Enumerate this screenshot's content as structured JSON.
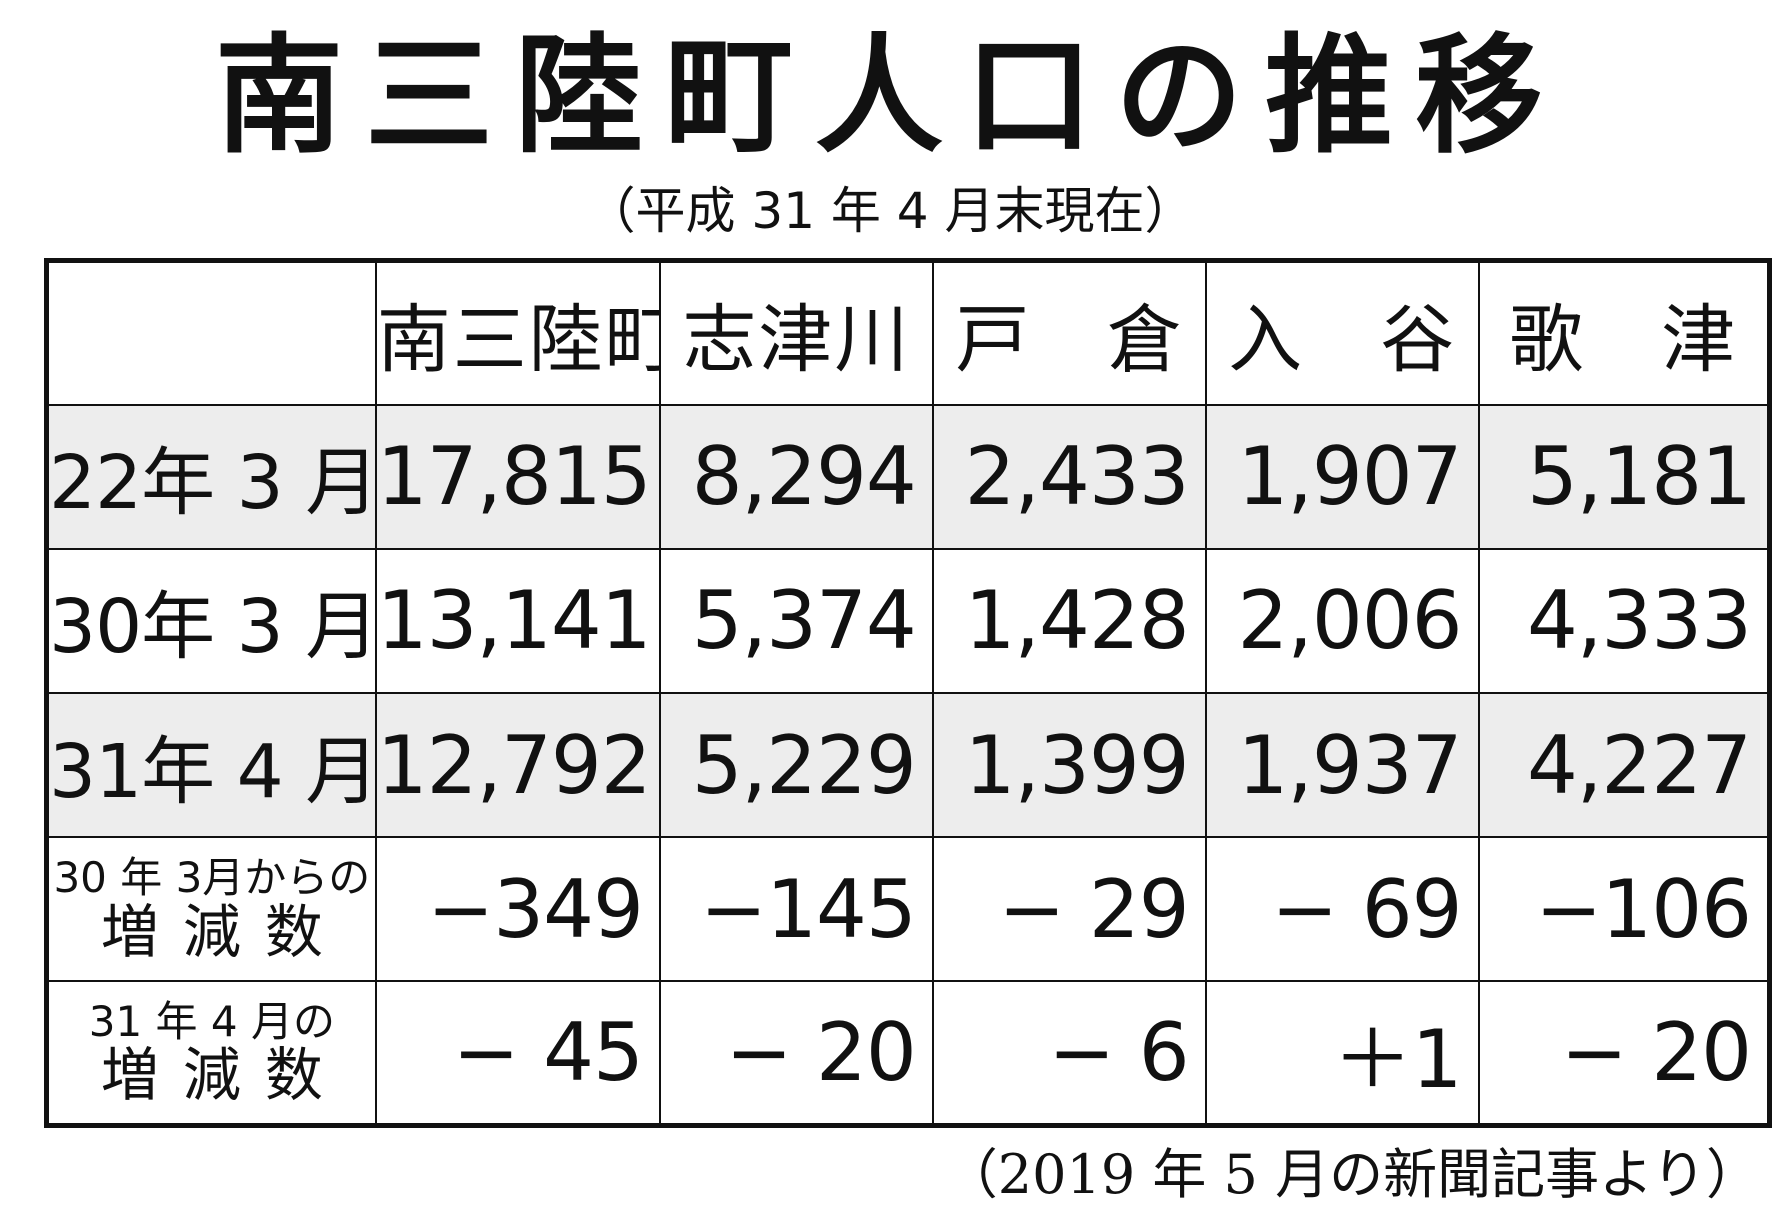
{
  "title": "南三陸町人口の推移",
  "subtitle": "（平成 31 年 4 月末現在）",
  "table": {
    "headers": [
      "",
      "南三陸町",
      "志津川",
      "戸　倉",
      "入　谷",
      "歌　津"
    ],
    "rows": [
      {
        "label": "22年 3 月",
        "values": [
          "17,815",
          "8,294",
          "2,433",
          "1,907",
          "5,181"
        ]
      },
      {
        "label": "30年 3 月",
        "values": [
          "13,141",
          "5,374",
          "1,428",
          "2,006",
          "4,333"
        ]
      },
      {
        "label": "31年 4 月",
        "values": [
          "12,792",
          "5,229",
          "1,399",
          "1,937",
          "4,227"
        ]
      }
    ],
    "changes": [
      {
        "label_line1": "30 年 3月からの",
        "label_line2": "増減数",
        "values": [
          "−349",
          "−145",
          "− 29",
          "− 69",
          "−106"
        ]
      },
      {
        "label_line1": "31 年 4 月の",
        "label_line2": "増減数",
        "values": [
          "− 45",
          "− 20",
          "− 6",
          "＋1",
          "− 20"
        ]
      }
    ]
  },
  "footer": "（2019 年 5 月の新聞記事より）",
  "colors": {
    "shaded_row": "#ededed",
    "border": "#111111"
  }
}
